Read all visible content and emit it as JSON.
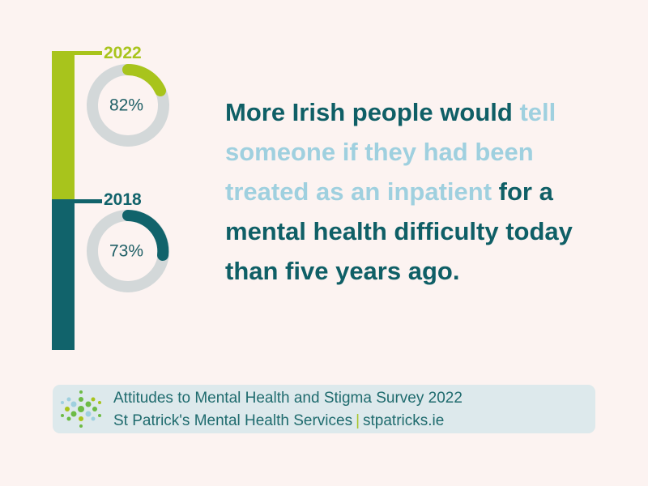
{
  "years": [
    {
      "year": "2022",
      "value": "82%"
    },
    {
      "year": "2018",
      "value": "73%"
    }
  ],
  "headline": {
    "lead": "More Irish people would",
    "highlight": "tell someone if they had been treated as an inpatient",
    "tail": "for a mental health difficulty today than five years ago."
  },
  "footer": {
    "survey": "Attitudes to Mental Health and Stigma Survey 2022",
    "organisation": "St Patrick's Mental Health Services",
    "website": "stpatricks.ie"
  }
}
